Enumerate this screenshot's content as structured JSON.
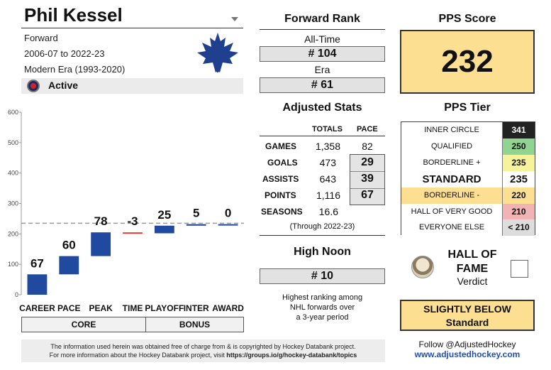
{
  "player": {
    "name": "Phil Kessel",
    "position": "Forward",
    "seasons_range": "2006-07 to 2022-23",
    "era": "Modern Era (1993-2020)",
    "status": "Active"
  },
  "icons": {
    "dropdown": "chevron-down-icon",
    "status": "hockey-hall-of-fame-icon",
    "team": "toronto-maple-leafs-logo",
    "verdict": "hall-of-fame-portrait-icon"
  },
  "chart_data": {
    "type": "bar",
    "subtype": "waterfall",
    "categories": [
      "CAREER",
      "PACE",
      "PEAK",
      "TIME",
      "PLAYOFF",
      "INTER",
      "AWARD"
    ],
    "values": [
      67,
      60,
      78,
      -3,
      25,
      5,
      0
    ],
    "value_labels": [
      "67",
      "60",
      "78",
      "-3",
      "25",
      "5",
      "0"
    ],
    "ylim": [
      0,
      600
    ],
    "yticks": [
      "0",
      "100",
      "200",
      "300",
      "400",
      "500",
      "600"
    ],
    "reference_line": 235,
    "colors": {
      "positive": "#1f4aa0",
      "negative": "#e33b3b",
      "reference": "#999999"
    },
    "groups": [
      {
        "label": "CORE"
      },
      {
        "label": "BONUS"
      }
    ]
  },
  "forward_rank": {
    "title": "Forward Rank",
    "all_time_label": "All-Time",
    "all_time_value": "# 104",
    "era_label": "Era",
    "era_value": "# 61"
  },
  "adjusted_stats": {
    "title": "Adjusted Stats",
    "col_totals": "TOTALS",
    "col_pace": "PACE",
    "rows": [
      {
        "label": "GAMES",
        "total": "1,358",
        "pace": "82"
      },
      {
        "label": "GOALS",
        "total": "473",
        "pace": "29"
      },
      {
        "label": "ASSISTS",
        "total": "643",
        "pace": "39"
      },
      {
        "label": "POINTS",
        "total": "1,116",
        "pace": "67"
      },
      {
        "label": "SEASONS",
        "total": "16.6",
        "pace": ""
      }
    ],
    "through": "(Through 2022-23)"
  },
  "high_noon": {
    "title": "High Noon",
    "value": "# 10",
    "desc_line1": "Highest ranking among",
    "desc_line2": "NHL forwards over",
    "desc_line3": "a 3-year period"
  },
  "pps": {
    "title": "PPS Score",
    "score": "232",
    "tier_title": "PPS Tier",
    "tiers": [
      {
        "name": "INNER CIRCLE",
        "value": "341",
        "bg": "#ffffff",
        "val_bg": "#222222",
        "val_color": "#ffffff"
      },
      {
        "name": "QUALIFIED",
        "value": "250",
        "bg": "#ffffff",
        "val_bg": "#8fd48f",
        "val_color": "#111111"
      },
      {
        "name": "BORDERLINE +",
        "value": "235",
        "bg": "#ffffff",
        "val_bg": "#f6f39a",
        "val_color": "#111111"
      },
      {
        "name": "STANDARD",
        "value": "235",
        "bg": "#ffffff",
        "val_bg": "#ffffff",
        "val_color": "#111111"
      },
      {
        "name": "BORDERLINE -",
        "value": "220",
        "bg": "#fddf92",
        "val_bg": "#fddf92",
        "val_color": "#111111"
      },
      {
        "name": "HALL OF VERY GOOD",
        "value": "210",
        "bg": "#ffffff",
        "val_bg": "#f1b3b3",
        "val_color": "#111111"
      },
      {
        "name": "EVERYONE ELSE",
        "value": "< 210",
        "bg": "#ffffff",
        "val_bg": "#dddddd",
        "val_color": "#111111"
      }
    ]
  },
  "hof": {
    "title_line1": "HALL OF",
    "title_line2": "FAME",
    "verdict_label": "Verdict",
    "verdict_line1": "SLIGHTLY BELOW",
    "verdict_line2": "Standard"
  },
  "follow": {
    "text": "Follow @AdjustedHockey",
    "link": "www.adjustedhockey.com"
  },
  "footer": {
    "line1": "The information used herein was obtained free of charge from & is copyrighted by Hockey Databank project.",
    "line2_prefix": "For more information about the Hockey Databank project, visit ",
    "line2_link": "https://groups.io/g/hockey-databank/topics"
  }
}
